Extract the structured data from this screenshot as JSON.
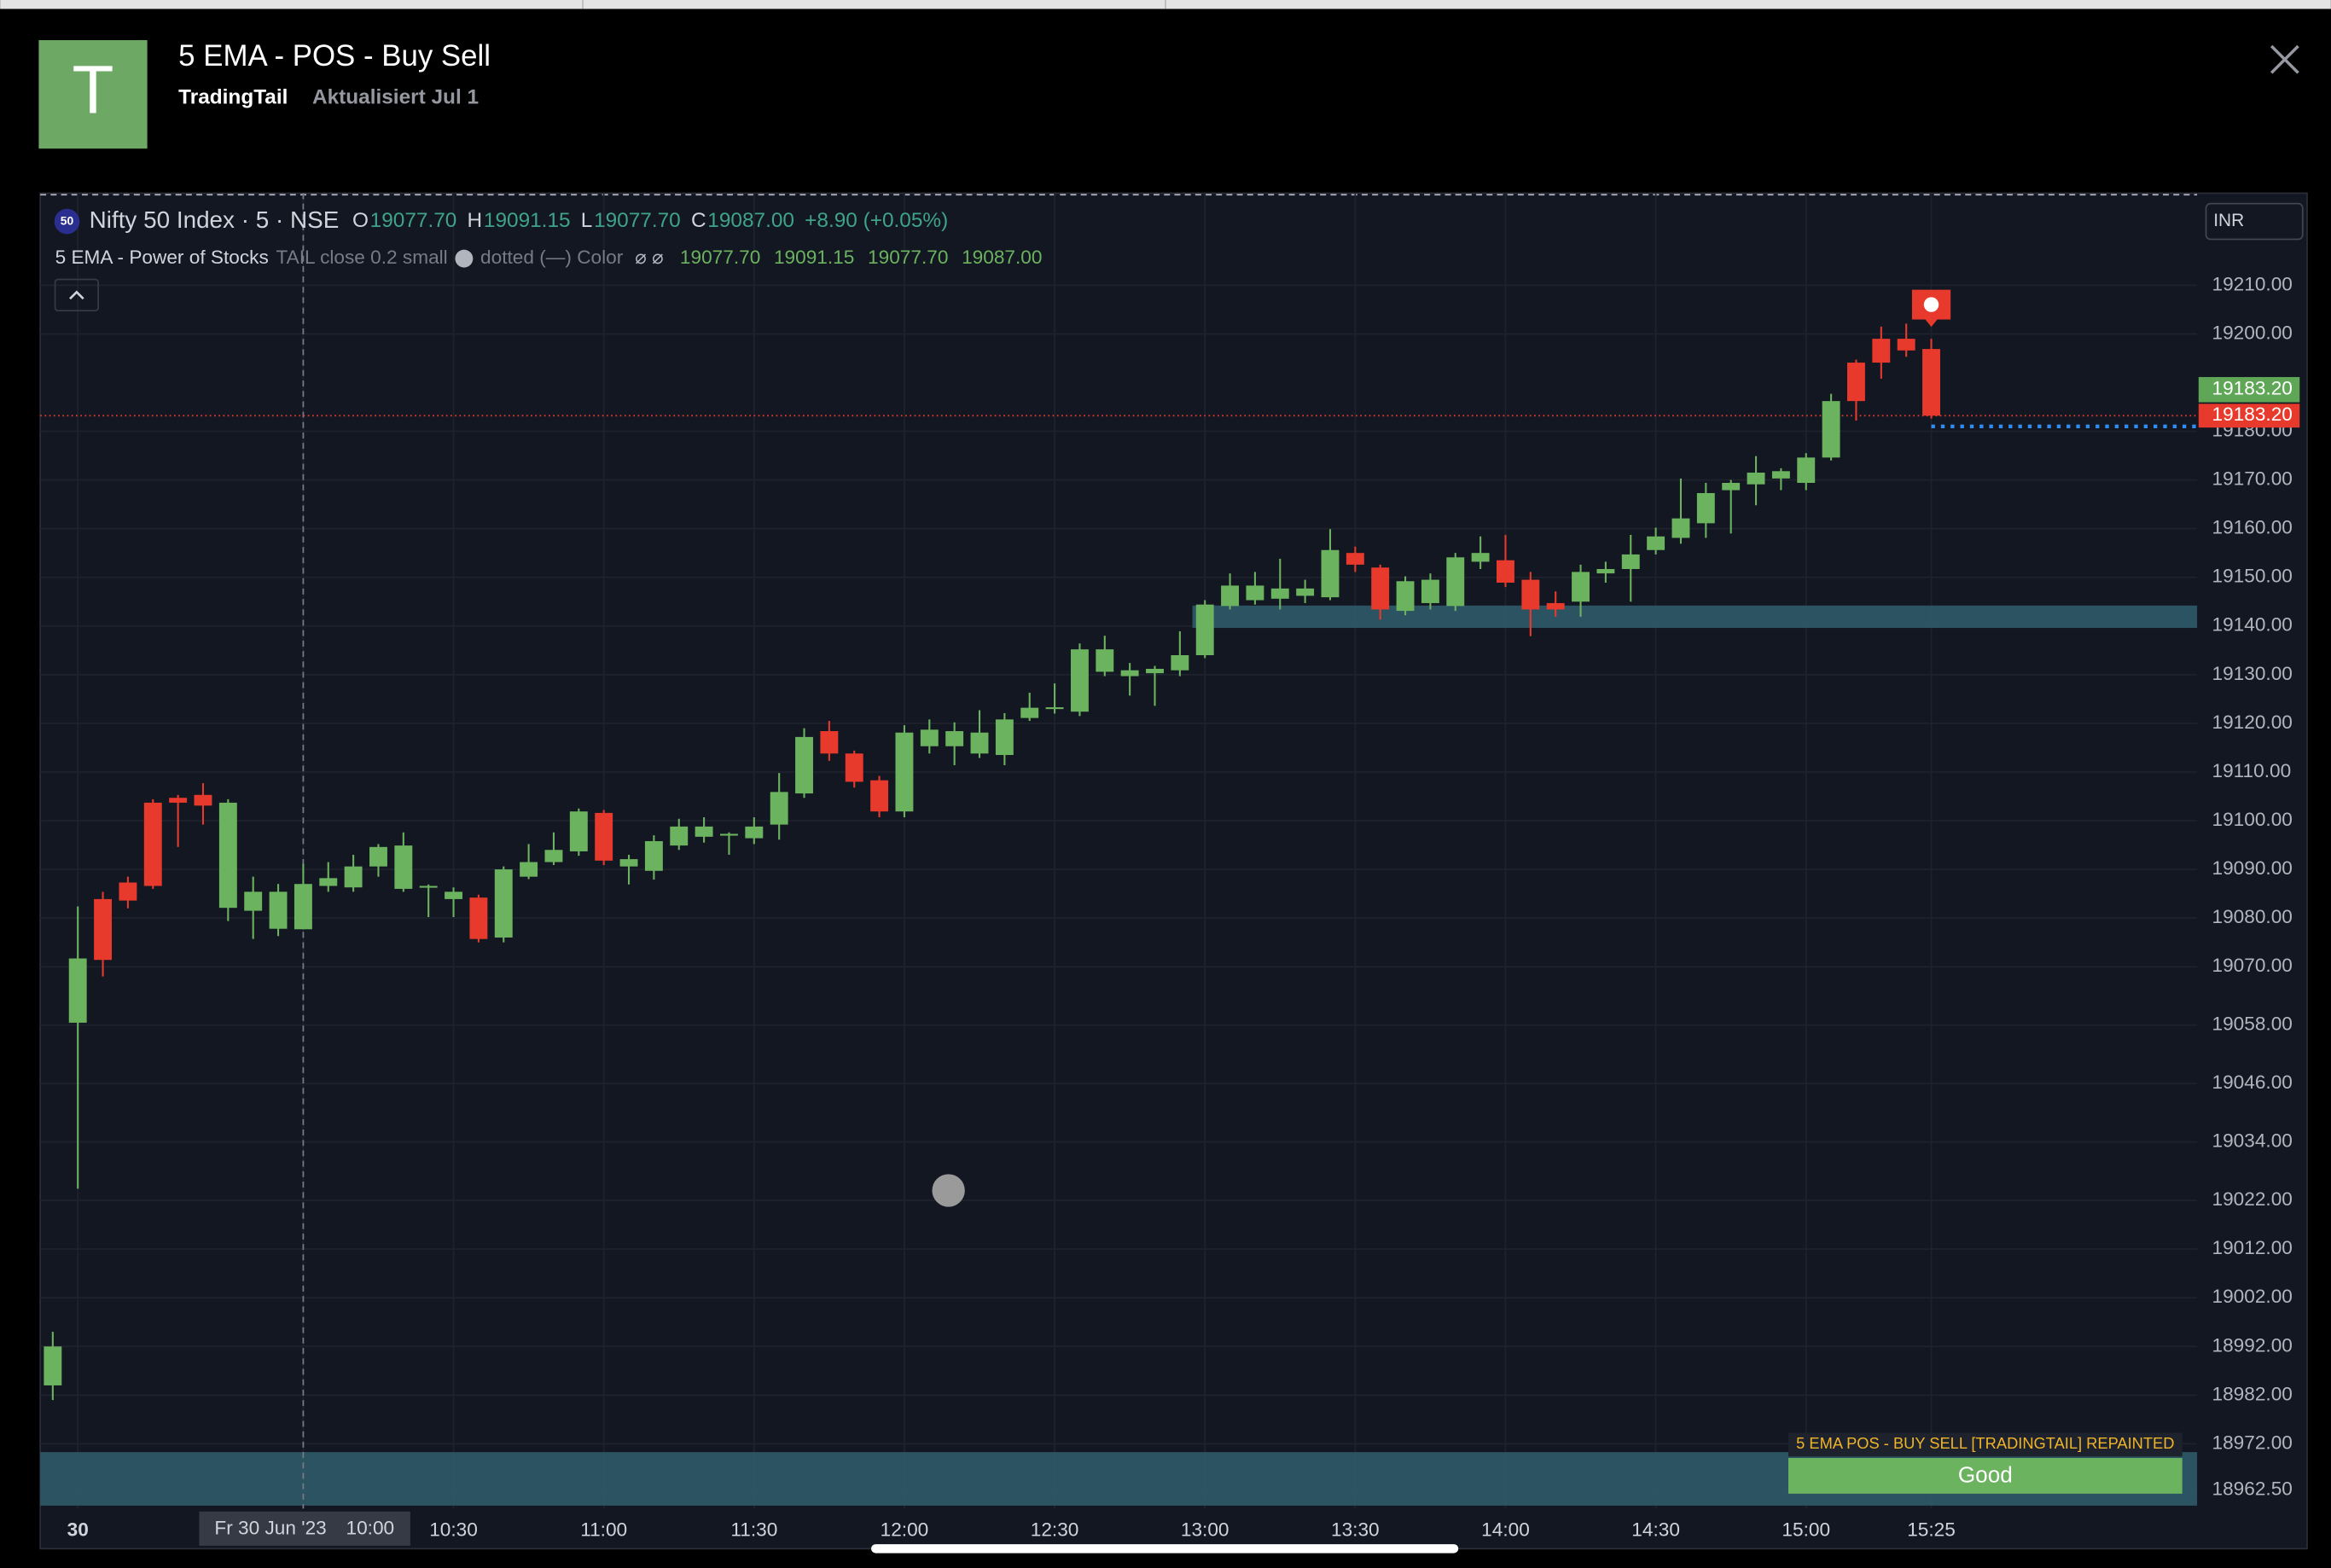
{
  "header": {
    "avatar": "T",
    "title": "5 EMA - POS - Buy Sell",
    "author": "TradingTail",
    "updated": "Aktualisiert Jul 1"
  },
  "chart_data": {
    "type": "candlestick",
    "symbol_badge": "50",
    "symbol": "Nifty 50 Index · 5 · NSE",
    "legend": [
      {
        "key": "O",
        "value": "19077.70"
      },
      {
        "key": "H",
        "value": "19091.15"
      },
      {
        "key": "L",
        "value": "19077.70"
      },
      {
        "key": "C",
        "value": "19087.00"
      }
    ],
    "change": "+8.90 (+0.05%)",
    "indicator": {
      "name": "5 EMA - Power of Stocks",
      "settings": "TAIL close 0.2 small",
      "style": "dotted (—) Color",
      "flags": "⌀ ⌀",
      "values": [
        "19077.70",
        "19091.15",
        "19077.70",
        "19087.00"
      ]
    },
    "currency": "INR",
    "categories": [
      null,
      "30",
      null,
      null,
      null,
      null,
      null,
      null,
      null,
      null,
      "10:00",
      null,
      null,
      null,
      null,
      null,
      "10:30",
      null,
      null,
      null,
      null,
      null,
      "11:00",
      null,
      null,
      null,
      null,
      null,
      "11:30",
      null,
      null,
      null,
      null,
      null,
      "12:00",
      null,
      null,
      null,
      null,
      null,
      "12:30",
      null,
      null,
      null,
      null,
      null,
      "13:00",
      null,
      null,
      null,
      null,
      null,
      "13:30",
      null,
      null,
      null,
      null,
      null,
      "14:00",
      null,
      null,
      null,
      null,
      null,
      "14:30",
      null,
      null,
      null,
      null,
      null,
      "15:00",
      null,
      null,
      null,
      null,
      "15:25"
    ],
    "crosshair": {
      "bar": 10,
      "date": "Fr 30 Jun '23"
    },
    "open": [
      18984,
      19058.5,
      19083.9,
      19087.3,
      19103.7,
      19104.7,
      19105.3,
      19082.1,
      19081.5,
      19077.8,
      19077.7,
      19086.6,
      19086.3,
      19090.6,
      19086,
      19086.3,
      19083.9,
      19084.2,
      19076,
      19088.5,
      19091.5,
      19093.7,
      19101.6,
      19090.6,
      19089.7,
      19094.9,
      19096.7,
      19097,
      19096.4,
      19099.2,
      19105.6,
      19118.4,
      19113.8,
      19108.3,
      19101.9,
      19115.3,
      19115.3,
      19113.8,
      19113.5,
      19121.1,
      19123.2,
      19122.4,
      19130.6,
      19129.7,
      19130.3,
      19130.9,
      19134,
      19144.1,
      19145.3,
      19145.6,
      19146.2,
      19145.9,
      19155,
      19152,
      19143.1,
      19144.7,
      19144.1,
      19153.2,
      19153.5,
      19149.5,
      19144.7,
      19145,
      19150.8,
      19151.7,
      19155.6,
      19158.1,
      19161.1,
      19167.9,
      19169.1,
      19170.3,
      19169.4,
      19174.6,
      19194.1,
      19199,
      19199,
      19196.9
    ],
    "high": [
      18995,
      19082.4,
      19085.4,
      19088.5,
      19104.4,
      19105.3,
      19107.7,
      19104.4,
      19088.5,
      19087,
      19091.15,
      19091.5,
      19093,
      19095.2,
      19097.6,
      19086.9,
      19086.3,
      19084.8,
      19090.6,
      19095.2,
      19097.6,
      19102.5,
      19102.2,
      19093,
      19097,
      19100.4,
      19100.7,
      19097.6,
      19100.7,
      19109.8,
      19119,
      19120.5,
      19114.4,
      19109.2,
      19119.6,
      19120.8,
      19120.2,
      19122.7,
      19122.1,
      19126.3,
      19128.2,
      19136.4,
      19138,
      19132.4,
      19131.8,
      19138.9,
      19145.3,
      19150.8,
      19151.1,
      19153.8,
      19149.5,
      19159.9,
      19156.3,
      19152.6,
      19150.2,
      19150.8,
      19155,
      19158.4,
      19158.7,
      19151.1,
      19147.1,
      19152.6,
      19153.2,
      19158.7,
      19160.2,
      19170.3,
      19169.4,
      19170,
      19174.9,
      19172.4,
      19175.5,
      19187.7,
      19194.7,
      19201.5,
      19202.1,
      19199
    ],
    "low": [
      18981,
      19024.4,
      19068,
      19082,
      19086,
      19094.6,
      19099.2,
      19079.4,
      19075.7,
      19076.3,
      19077.7,
      19085.4,
      19085.4,
      19088.5,
      19085.4,
      19080.2,
      19080.2,
      19075,
      19075,
      19088,
      19090.9,
      19092.8,
      19090.9,
      19086.9,
      19087.9,
      19094,
      19095.5,
      19093,
      19095.2,
      19096.1,
      19104.7,
      19112.3,
      19106.8,
      19100.7,
      19100.7,
      19113.8,
      19111.4,
      19112.9,
      19111.4,
      19120.5,
      19122,
      19121.5,
      19129.7,
      19125.7,
      19123.6,
      19129.7,
      19133.4,
      19143.4,
      19144.4,
      19143.4,
      19144.7,
      19145.3,
      19151.1,
      19141.3,
      19142.2,
      19143.4,
      19143.1,
      19151.7,
      19148,
      19137.9,
      19141.9,
      19141.9,
      19148.9,
      19145,
      19154.7,
      19156.9,
      19158.1,
      19159,
      19164.8,
      19167.9,
      19167.9,
      19174,
      19182.2,
      19190.8,
      19195.3,
      19182.6
    ],
    "close": [
      18992,
      19071.7,
      19071.4,
      19083.6,
      19086.6,
      19103.7,
      19103.1,
      19103.7,
      19085.4,
      19085.4,
      19087,
      19088.2,
      19090.6,
      19094.6,
      19094.9,
      19086.6,
      19085.4,
      19075.7,
      19090,
      19091.5,
      19094,
      19101.9,
      19091.8,
      19092.1,
      19095.8,
      19098.8,
      19098.8,
      19097.3,
      19098.8,
      19105.9,
      19117.2,
      19113.8,
      19108,
      19101.9,
      19118.1,
      19118.7,
      19118.4,
      19118.1,
      19120.8,
      19123.2,
      19123.3,
      19135.2,
      19135.2,
      19130.9,
      19131.2,
      19134,
      19144.4,
      19148.3,
      19148.3,
      19147.7,
      19147.7,
      19155.6,
      19152.6,
      19143.4,
      19149.2,
      19149.5,
      19154.1,
      19155,
      19148.9,
      19143.4,
      19143.4,
      19151.1,
      19151.7,
      19154.7,
      19158.4,
      19162.1,
      19167.3,
      19169.4,
      19171.5,
      19171.8,
      19174.6,
      19186.2,
      19186.2,
      19194.1,
      19196.6,
      19183.2
    ],
    "up_color": "#6cb35f",
    "down_color": "#e83a2c",
    "ylim": [
      18958.7,
      19228.9
    ],
    "yticks": [
      {
        "value": 19210,
        "label": "19210.00"
      },
      {
        "value": 19200,
        "label": "19200.00"
      },
      {
        "value": 19180,
        "label": "19180.00"
      },
      {
        "value": 19170,
        "label": "19170.00"
      },
      {
        "value": 19160,
        "label": "19160.00"
      },
      {
        "value": 19150,
        "label": "19150.00"
      },
      {
        "value": 19140,
        "label": "19140.00"
      },
      {
        "value": 19130,
        "label": "19130.00"
      },
      {
        "value": 19120,
        "label": "19120.00"
      },
      {
        "value": 19110,
        "label": "19110.00"
      },
      {
        "value": 19100,
        "label": "19100.00"
      },
      {
        "value": 19090,
        "label": "19090.00"
      },
      {
        "value": 19080,
        "label": "19080.00"
      },
      {
        "value": 19070,
        "label": "19070.00"
      },
      {
        "value": 19058,
        "label": "19058.00"
      },
      {
        "value": 19046,
        "label": "19046.00"
      },
      {
        "value": 19034,
        "label": "19034.00"
      },
      {
        "value": 19022,
        "label": "19022.00"
      },
      {
        "value": 19012,
        "label": "19012.00"
      },
      {
        "value": 19002,
        "label": "19002.00"
      },
      {
        "value": 18992,
        "label": "18992.00"
      },
      {
        "value": 18982,
        "label": "18982.00"
      },
      {
        "value": 18972,
        "label": "18972.00"
      },
      {
        "value": 18962.5,
        "label": "18962.50"
      }
    ],
    "grid": true,
    "last_price": 19183.2,
    "price_labels": [
      "19183.20",
      "19183.20"
    ],
    "zones": [
      {
        "low": 19139.6,
        "high": 19144.2,
        "from_bar": 46
      },
      {
        "low": 18959.3,
        "high": 18970.3,
        "from_bar": 0
      }
    ],
    "sell_signals": [
      75
    ],
    "stop_line": {
      "price": 19181,
      "from_bar": 75
    },
    "status": {
      "label": "5 EMA POS - BUY SELL [TRADINGTAIL] REPAINTED",
      "value": "Good"
    }
  }
}
